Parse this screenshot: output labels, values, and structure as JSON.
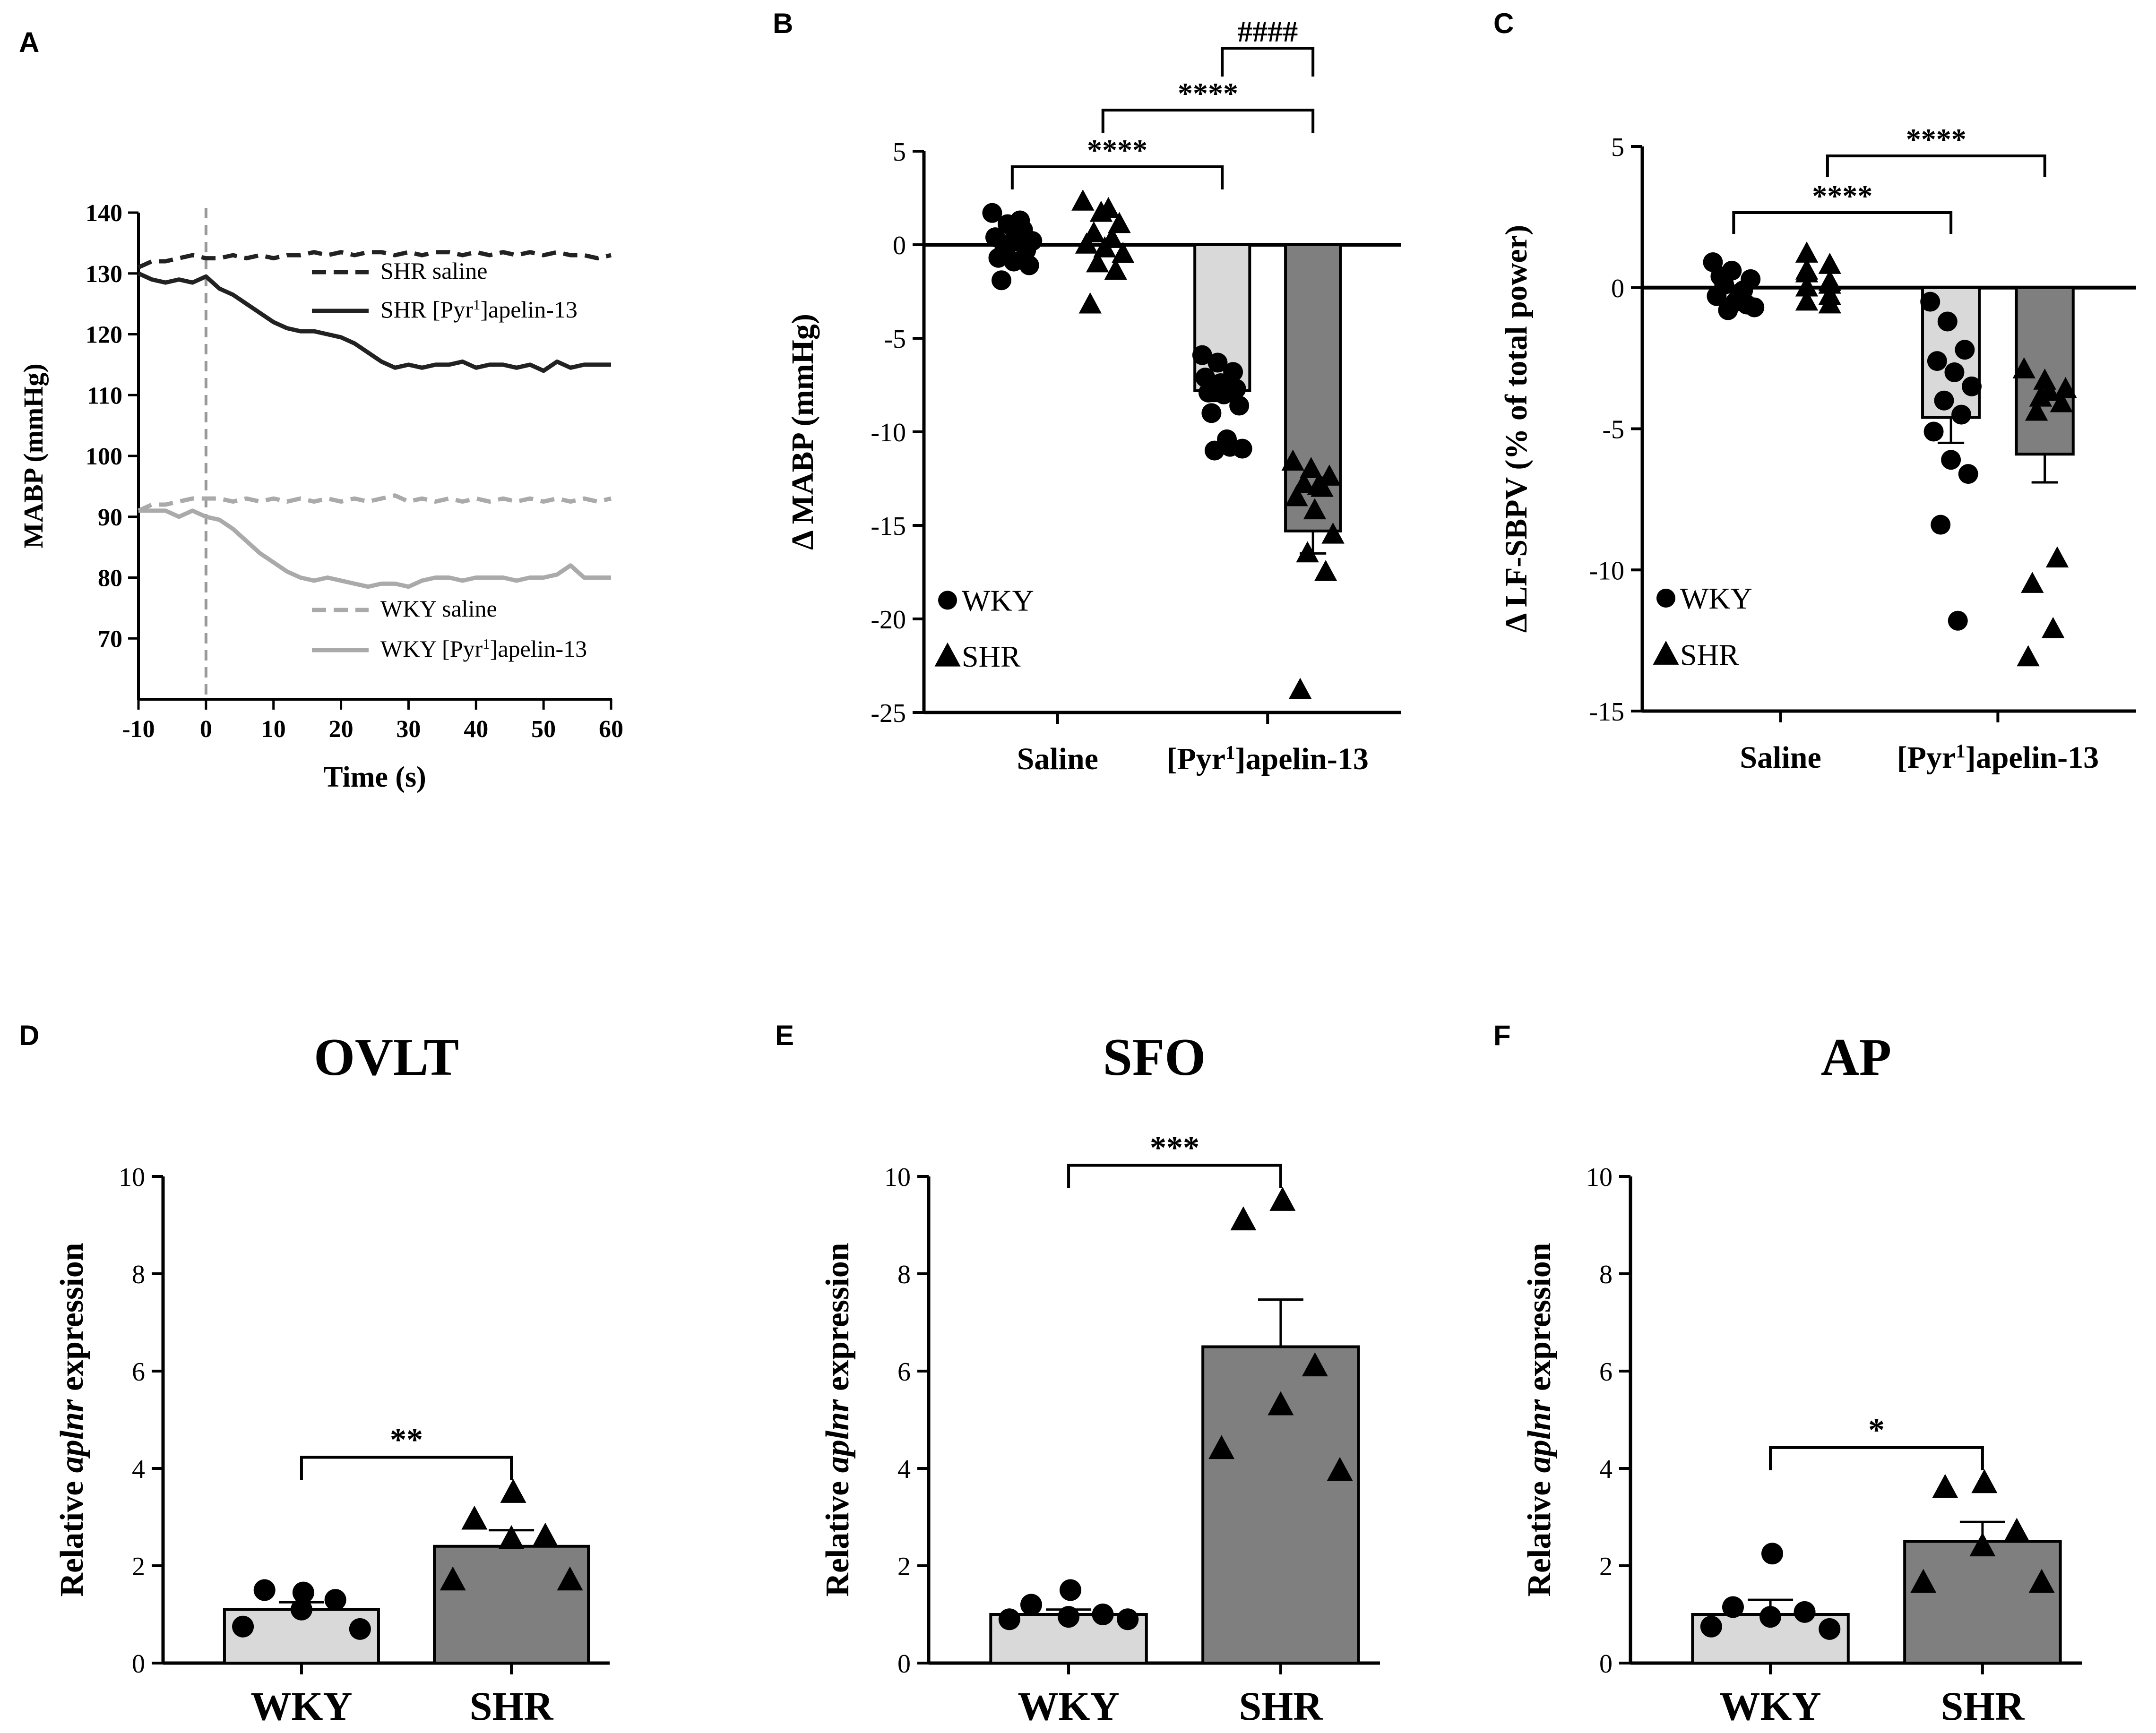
{
  "colors": {
    "light_bar": "#d9d9d9",
    "dark_bar": "#7f7f7f",
    "light_line": "#aaaaaa",
    "dark_line": "#222222",
    "axis": "#000000"
  },
  "chart_data": [
    {
      "panel": "A",
      "type": "line",
      "title": "",
      "xlabel": "Time (s)",
      "ylabel": "MABP (mmHg)",
      "xlim": [
        -10,
        60
      ],
      "ylim": [
        60,
        140
      ],
      "xticks": [
        "-10",
        "0",
        "10",
        "20",
        "30",
        "40",
        "50",
        "60"
      ],
      "yticks": [
        "70",
        "80",
        "90",
        "100",
        "110",
        "120",
        "130",
        "140"
      ],
      "vline_x": 0,
      "x": [
        -10,
        -8,
        -6,
        -4,
        -2,
        0,
        2,
        4,
        6,
        8,
        10,
        12,
        14,
        16,
        18,
        20,
        22,
        24,
        26,
        28,
        30,
        32,
        34,
        36,
        38,
        40,
        42,
        44,
        46,
        48,
        50,
        52,
        54,
        56,
        58,
        60
      ],
      "series": [
        {
          "name": "SHR saline",
          "style": "dashed",
          "color": "dark",
          "values": [
            131,
            132,
            132,
            132.5,
            133,
            132.5,
            132.5,
            133,
            132.5,
            133,
            132.5,
            133,
            133,
            133.5,
            133,
            133.5,
            133,
            133.5,
            133.5,
            133,
            133.5,
            133,
            133.5,
            133.5,
            133,
            133.5,
            133,
            133.5,
            133,
            133.5,
            133,
            133.5,
            133,
            133,
            132.5,
            133
          ]
        },
        {
          "name": "SHR [Pyr¹]apelin-13",
          "style": "solid",
          "color": "dark",
          "values": [
            130,
            129,
            128.5,
            129,
            128.5,
            129.5,
            127.5,
            126.5,
            125,
            123.5,
            122,
            121,
            120.5,
            120.5,
            120,
            119.5,
            118.5,
            117,
            115.5,
            114.5,
            115,
            114.5,
            115,
            115,
            115.5,
            114.5,
            115,
            115,
            114.5,
            115,
            114,
            115.5,
            114.5,
            115,
            115,
            115
          ]
        },
        {
          "name": "WKY saline",
          "style": "dashed",
          "color": "light",
          "values": [
            91,
            92,
            92,
            92.5,
            93,
            93,
            93,
            92.5,
            93,
            92.5,
            93,
            92.5,
            93,
            92.5,
            93,
            92.5,
            93,
            92.5,
            93,
            93.5,
            92.5,
            93,
            92.5,
            93,
            92.5,
            93,
            92.5,
            93,
            92.5,
            93,
            92.5,
            93,
            92.5,
            93,
            92.5,
            93
          ]
        },
        {
          "name": "WKY [Pyr¹]apelin-13",
          "style": "solid",
          "color": "light",
          "values": [
            91,
            91,
            91,
            90,
            91,
            90,
            89.5,
            88,
            86,
            84,
            82.5,
            81,
            80,
            79.5,
            80,
            79.5,
            79,
            78.5,
            79,
            79,
            78.5,
            79.5,
            80,
            80,
            79.5,
            80,
            80,
            80,
            79.5,
            80,
            80,
            80.5,
            82,
            80,
            80,
            80
          ]
        }
      ]
    },
    {
      "panel": "B",
      "type": "bar",
      "title": "",
      "xlabel": "",
      "ylabel": "Δ MABP (mmHg)",
      "ylim": [
        -25,
        5
      ],
      "yticks": [
        "5",
        "0",
        "-5",
        "-10",
        "-15",
        "-20",
        "-25"
      ],
      "categories": [
        "Saline",
        "[Pyr¹]apelin-13"
      ],
      "legend": [
        "WKY",
        "SHR"
      ],
      "series": [
        {
          "name": "WKY",
          "marker": "circle",
          "values": [
            0,
            -7.8
          ],
          "sem": [
            0,
            0.55
          ],
          "points": [
            [
              1.7,
              1.1,
              0.8,
              0.4,
              0.1,
              -0.3,
              -0.7,
              -0.9,
              -1.1,
              -1.9,
              0.5,
              0.2,
              -0.2,
              1.3
            ],
            [
              -5.9,
              -6.3,
              -6.8,
              -7.1,
              -7.4,
              -7.7,
              -7.9,
              -8.0,
              -8.6,
              -9.0,
              -10.4,
              -10.9,
              -11.0,
              -10.8
            ]
          ]
        },
        {
          "name": "SHR",
          "marker": "triangle",
          "values": [
            0,
            -15.3
          ],
          "sem": [
            0,
            1.2
          ],
          "points": [
            [
              2.3,
              1.7,
              1.1,
              0.6,
              0.3,
              0,
              -0.2,
              -0.5,
              -1,
              -1.4,
              -3.2,
              1.9
            ],
            [
              -11.6,
              -12.0,
              -12.4,
              -12.8,
              -13.0,
              -13.5,
              -14.2,
              -15.5,
              -16.5,
              -17.5,
              -23.8,
              -12.9
            ]
          ]
        }
      ],
      "annotations": [
        {
          "text": "****",
          "from": "Saline WKY",
          "to": "[Pyr¹]apelin-13 WKY"
        },
        {
          "text": "****",
          "from": "Saline SHR",
          "to": "[Pyr¹]apelin-13 SHR"
        },
        {
          "text": "####",
          "from": "[Pyr¹]apelin-13 WKY",
          "to": "[Pyr¹]apelin-13 SHR"
        }
      ]
    },
    {
      "panel": "C",
      "type": "bar",
      "title": "",
      "xlabel": "",
      "ylabel": "Δ LF-SBPV (% of total power)",
      "ylim": [
        -15,
        5
      ],
      "yticks": [
        "5",
        "0",
        "-5",
        "-10",
        "-15"
      ],
      "categories": [
        "Saline",
        "[Pyr¹]apelin-13"
      ],
      "legend": [
        "WKY",
        "SHR"
      ],
      "series": [
        {
          "name": "WKY",
          "marker": "circle",
          "values": [
            0,
            -4.6
          ],
          "sem": [
            0,
            0.9
          ],
          "points": [
            [
              0.9,
              0.6,
              0.3,
              0.1,
              -0.1,
              -0.3,
              -0.5,
              -0.7,
              -0.8,
              -0.6,
              0.4,
              -0.2
            ],
            [
              -0.5,
              -1.2,
              -2.2,
              -2.6,
              -3.0,
              -3.5,
              -4.0,
              -4.5,
              -5.1,
              -6.1,
              -6.6,
              -8.4,
              -11.8
            ]
          ]
        },
        {
          "name": "SHR",
          "marker": "triangle",
          "values": [
            0,
            -5.9
          ],
          "sem": [
            0,
            1.0
          ],
          "points": [
            [
              1.2,
              0.8,
              0.5,
              0.2,
              0,
              -0.3,
              -0.5,
              -0.6,
              0.6,
              0.1
            ],
            [
              -2.9,
              -3.3,
              -3.6,
              -3.9,
              -4.1,
              -4.4,
              -9.6,
              -10.5,
              -12.1,
              -13.1,
              -3.7
            ]
          ]
        }
      ],
      "annotations": [
        {
          "text": "****",
          "from": "Saline WKY",
          "to": "[Pyr¹]apelin-13 WKY"
        },
        {
          "text": "****",
          "from": "Saline SHR",
          "to": "[Pyr¹]apelin-13 SHR"
        }
      ]
    },
    {
      "panel": "D",
      "type": "bar",
      "title": "OVLT",
      "xlabel": "",
      "ylabel": "Relative aplnr expression",
      "ylim": [
        0,
        10
      ],
      "yticks": [
        "0",
        "2",
        "4",
        "6",
        "8",
        "10"
      ],
      "categories": [
        "WKY",
        "SHR"
      ],
      "values": [
        1.1,
        2.4
      ],
      "sem": [
        0.15,
        0.33
      ],
      "points": [
        [
          1.45,
          1.5,
          1.3,
          1.1,
          0.75,
          0.7
        ],
        [
          3.5,
          2.95,
          2.6,
          2.55,
          1.7,
          1.7
        ]
      ],
      "annotation": "**"
    },
    {
      "panel": "E",
      "type": "bar",
      "title": "SFO",
      "xlabel": "",
      "ylabel": "Relative aplnr expression",
      "ylim": [
        0,
        10
      ],
      "yticks": [
        "0",
        "2",
        "4",
        "6",
        "8",
        "10"
      ],
      "categories": [
        "WKY",
        "SHR"
      ],
      "values": [
        1.0,
        6.5
      ],
      "sem": [
        0.1,
        0.97
      ],
      "points": [
        [
          1.5,
          1.2,
          1.0,
          0.95,
          0.9,
          0.9
        ],
        [
          9.5,
          9.1,
          6.1,
          5.3,
          4.4,
          3.95
        ]
      ],
      "annotation": "***"
    },
    {
      "panel": "F",
      "type": "bar",
      "title": "AP",
      "xlabel": "",
      "ylabel": "Relative aplnr expression",
      "ylim": [
        0,
        10
      ],
      "yticks": [
        "0",
        "2",
        "4",
        "6",
        "8",
        "10"
      ],
      "categories": [
        "WKY",
        "SHR"
      ],
      "values": [
        1.0,
        2.5
      ],
      "sem": [
        0.3,
        0.4
      ],
      "points": [
        [
          2.25,
          1.15,
          1.05,
          0.95,
          0.75,
          0.7
        ],
        [
          3.7,
          3.6,
          2.7,
          2.4,
          1.65,
          1.65
        ]
      ],
      "annotation": "*"
    }
  ]
}
